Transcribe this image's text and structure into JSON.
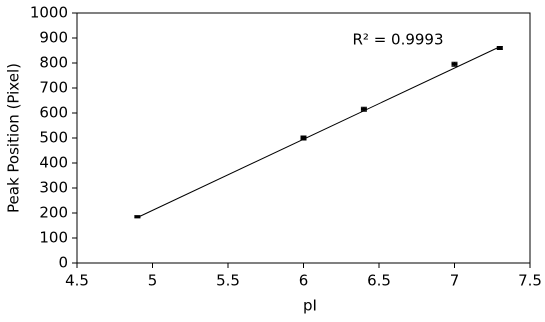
{
  "chart_data": {
    "type": "scatter",
    "x_label": "pI",
    "y_label": "Peak Position (Pixel)",
    "annotation": "R² = 0.9993",
    "x": [
      4.9,
      6.0,
      6.4,
      7.0,
      7.3
    ],
    "values": [
      185,
      500,
      615,
      795,
      860
    ],
    "errors": [
      4,
      8,
      8,
      8,
      6
    ],
    "color": "#000000",
    "fit": {
      "x": [
        4.9,
        7.3
      ],
      "y": [
        182,
        865
      ]
    },
    "xlim": [
      4.5,
      7.5
    ],
    "xticks": [
      4.5,
      5,
      5.5,
      6,
      6.5,
      7,
      7.5
    ],
    "ylim": [
      0,
      1000
    ],
    "yticks": [
      0,
      100,
      200,
      300,
      400,
      500,
      600,
      700,
      800,
      900,
      1000
    ],
    "grid": false
  }
}
